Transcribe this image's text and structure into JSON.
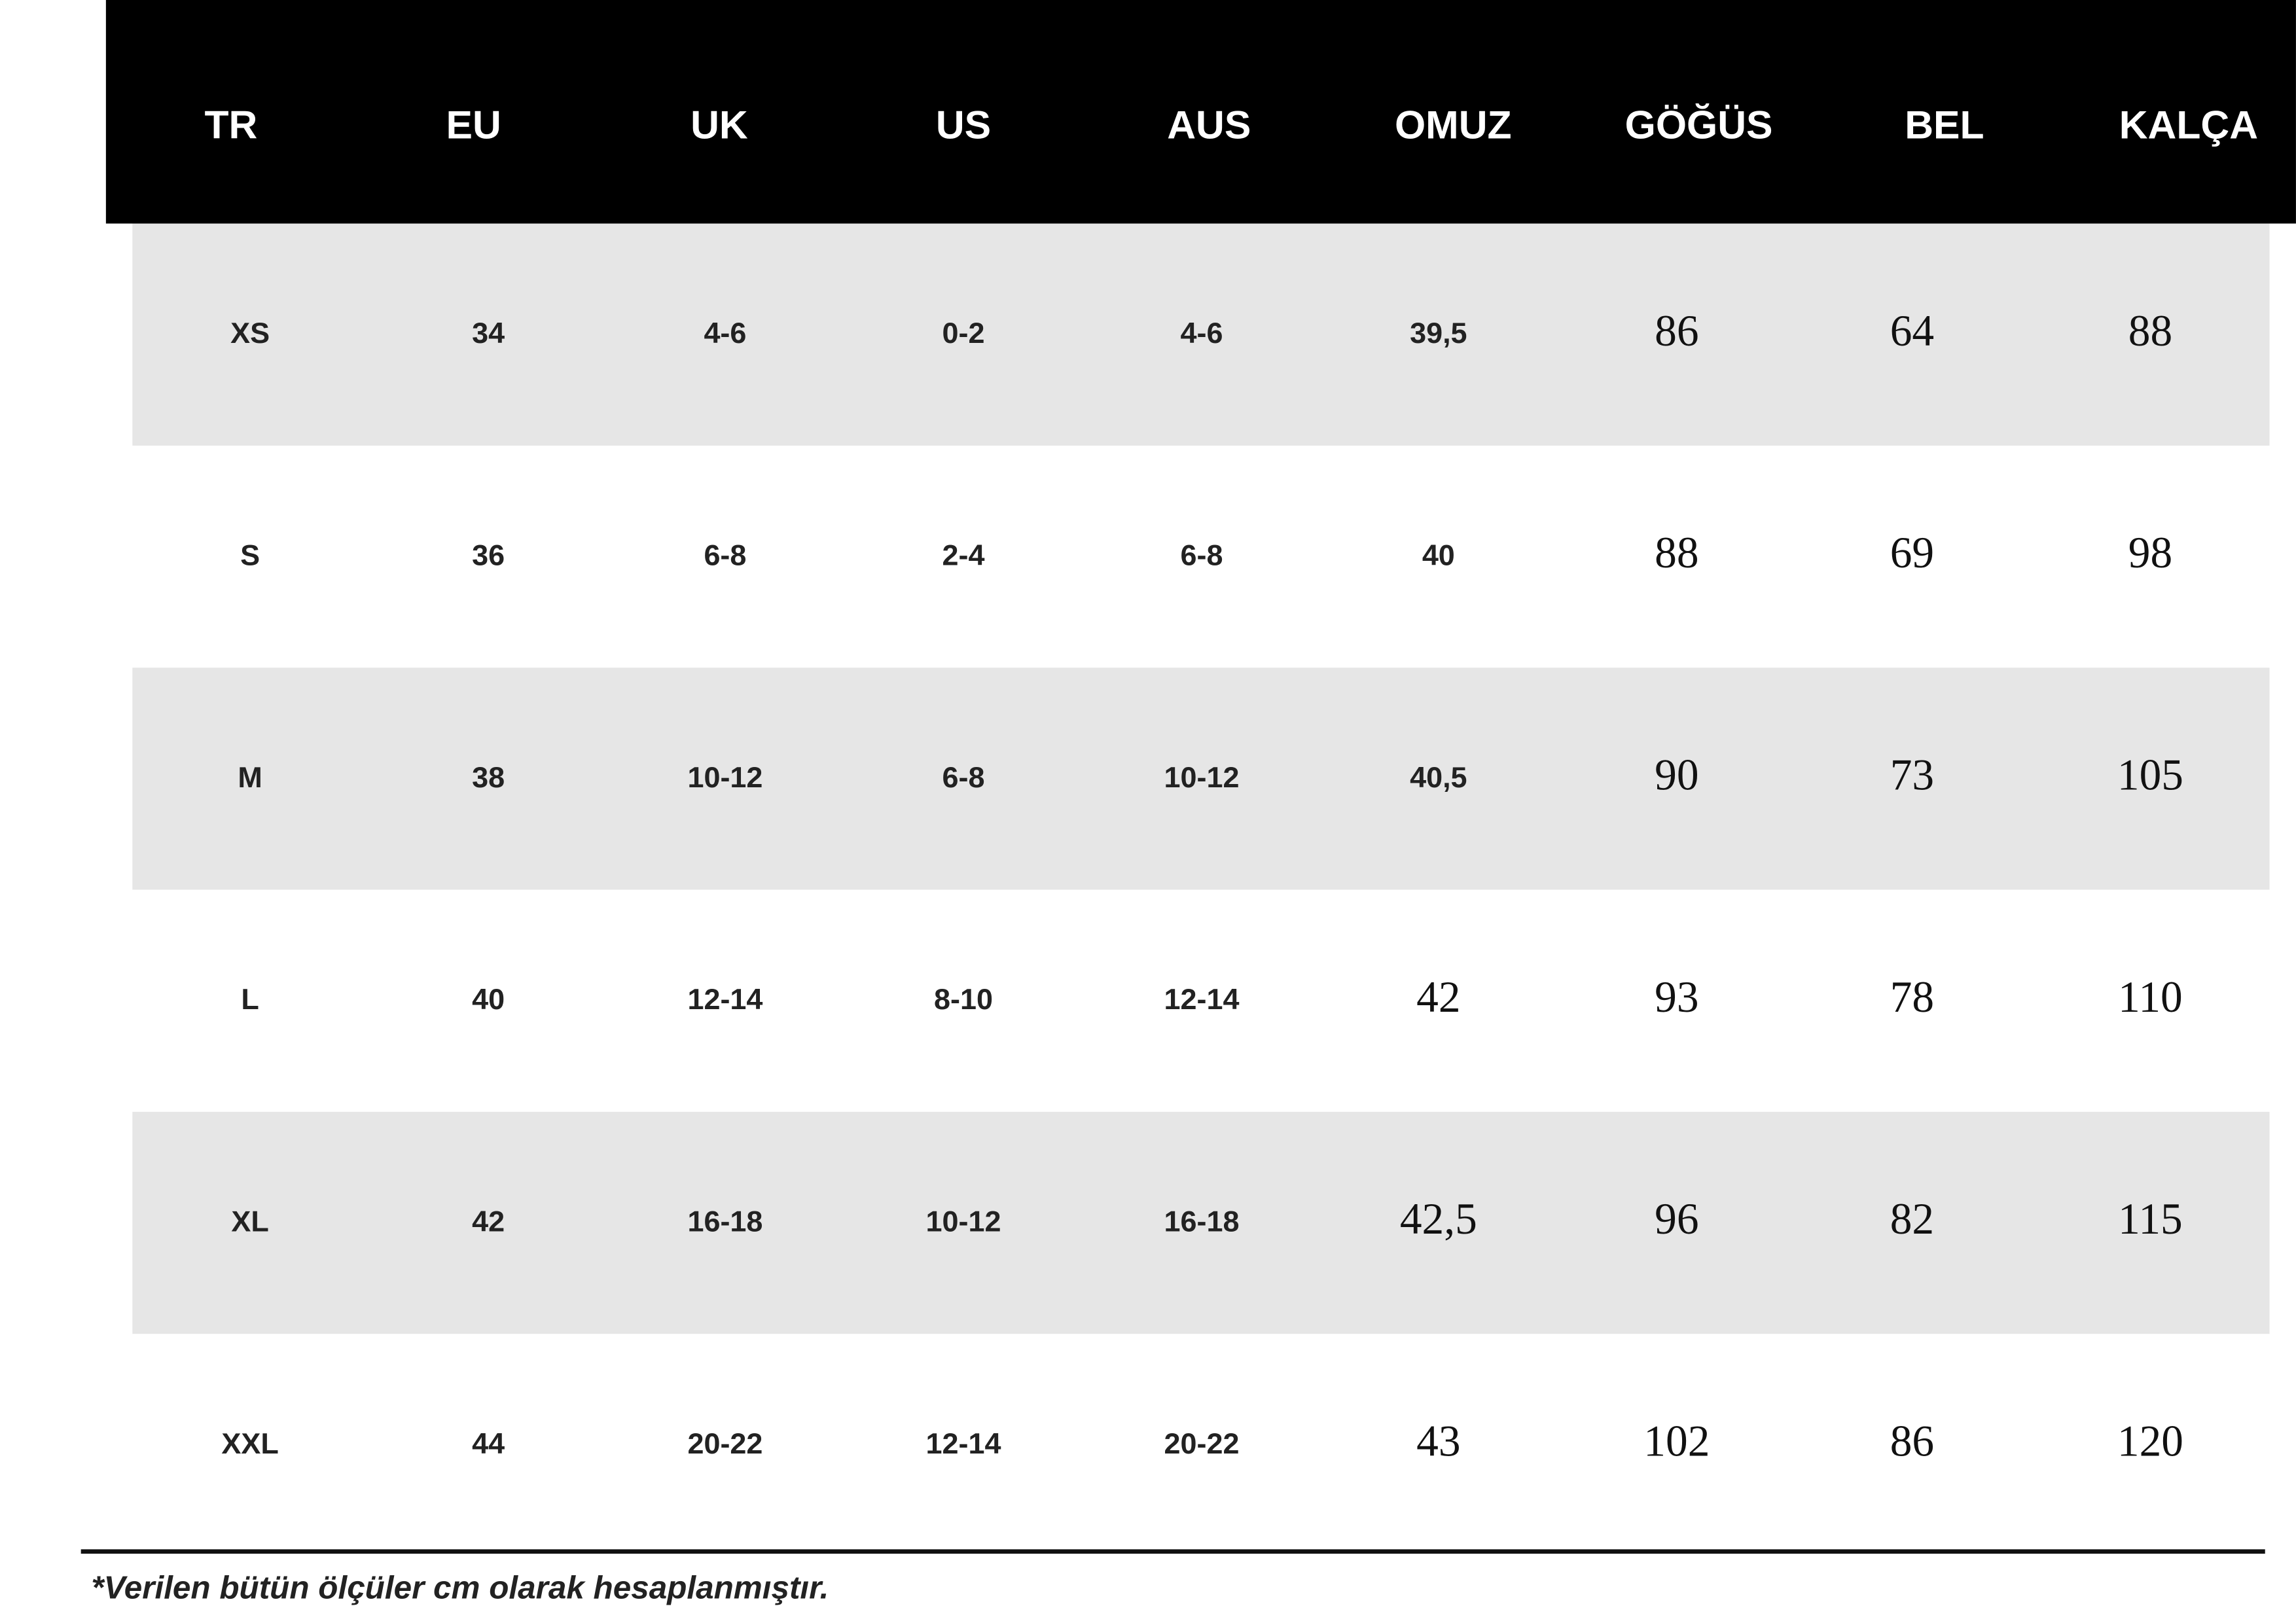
{
  "table": {
    "headers": [
      "TR",
      "EU",
      "UK",
      "US",
      "AUS",
      "OMUZ",
      "GÖĞÜS",
      "BEL",
      "KALÇA"
    ],
    "rows": [
      [
        "XS",
        "34",
        "4-6",
        "0-2",
        "4-6",
        "39,5",
        "86",
        "64",
        "88"
      ],
      [
        "S",
        "36",
        "6-8",
        "2-4",
        "6-8",
        "40",
        "88",
        "69",
        "98"
      ],
      [
        "M",
        "38",
        "10-12",
        "6-8",
        "10-12",
        "40,5",
        "90",
        "73",
        "105"
      ],
      [
        "L",
        "40",
        "12-14",
        "8-10",
        "12-14",
        "42",
        "93",
        "78",
        "110"
      ],
      [
        "XL",
        "42",
        "16-18",
        "10-12",
        "16-18",
        "42,5",
        "96",
        "82",
        "115"
      ],
      [
        "XXL",
        "44",
        "20-22",
        "12-14",
        "20-22",
        "43",
        "102",
        "86",
        "120"
      ]
    ]
  },
  "footnote": "*Verilen bütün ölçüler cm olarak hesaplanmıştır."
}
